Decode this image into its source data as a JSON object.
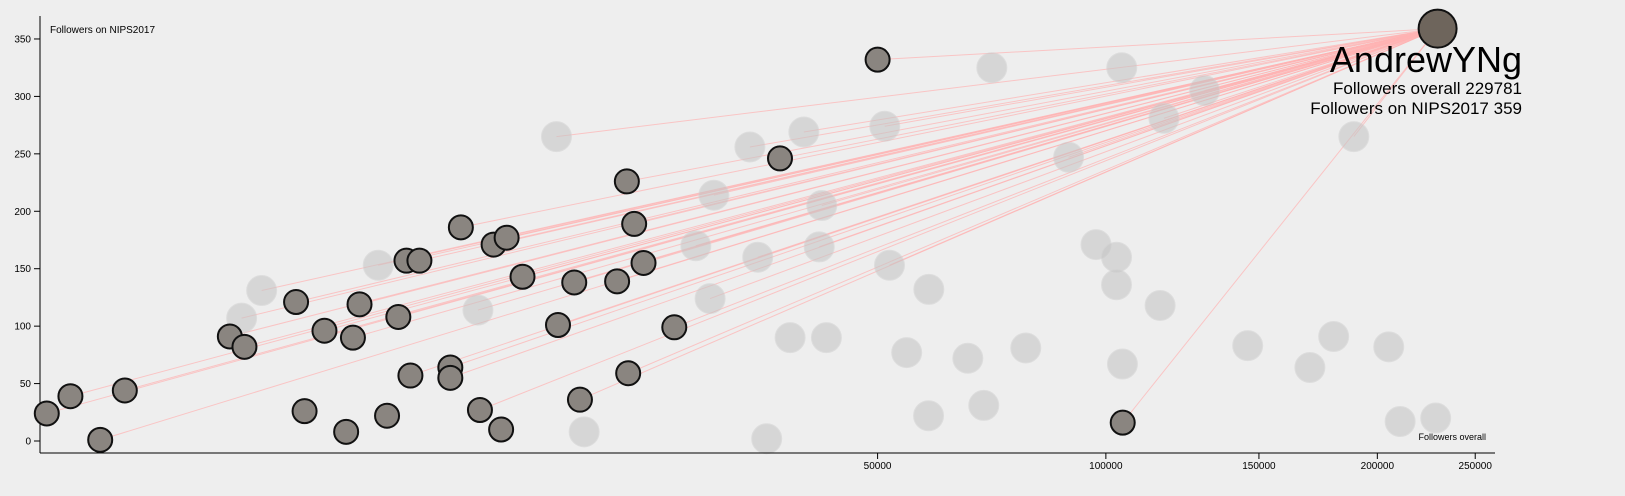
{
  "chart_data": {
    "type": "scatter",
    "xlabel": "Followers overall",
    "ylabel": "Followers on NIPS2017",
    "xscale": "pow",
    "xexponent": 0.25,
    "xlim": [
      437,
      260000
    ],
    "ylim": [
      -10,
      370
    ],
    "xticks": [
      50000,
      100000,
      150000,
      200000,
      250000
    ],
    "yticks": [
      0,
      50,
      100,
      150,
      200,
      250,
      300,
      350
    ],
    "highlight": {
      "label": "AndrewYNg",
      "x": 229781,
      "value": 359
    },
    "x": [
      50000,
      35680,
      19690,
      20300,
      9180,
      10800,
      11500,
      6900,
      7400,
      21100,
      12400,
      15700,
      18900,
      3600,
      5300,
      6600,
      14600,
      23900,
      2300,
      2550,
      4300,
      5100,
      8700,
      19800,
      7050,
      8700,
      16100,
      10100,
      3800,
      6200,
      4900,
      11200,
      104780,
      470,
      600,
      1000,
      800,
      71800,
      104500,
      130500,
      117200,
      189200,
      51200,
      38850,
      31960,
      14500,
      90000,
      27900,
      41370,
      26020,
      41000,
      32900,
      97280,
      103000,
      52000,
      59050,
      103000,
      116000,
      27500,
      37000,
      42040,
      79470,
      145800,
      180300,
      205400,
      170200,
      66720,
      104700,
      55000,
      59000,
      70060,
      210900,
      228800,
      34000,
      16400,
      2500,
      2870,
      5900,
      10000
    ],
    "values": [
      332,
      246,
      226,
      189,
      186,
      171,
      177,
      157,
      157,
      155,
      143,
      138,
      139,
      121,
      119,
      108,
      101,
      99,
      91,
      82,
      96,
      90,
      64,
      59,
      57,
      55,
      36,
      27,
      26,
      22,
      8,
      10,
      16,
      24,
      39,
      44,
      1,
      325,
      325,
      305,
      281,
      265,
      274,
      269,
      256,
      265,
      247,
      214,
      205,
      170,
      169,
      160,
      171,
      160,
      153,
      132,
      136,
      118,
      124,
      90,
      90,
      81,
      83,
      91,
      82,
      64,
      72,
      67,
      77,
      22,
      31,
      17,
      20,
      2,
      8,
      107,
      131,
      153,
      114
    ],
    "active": [
      true,
      true,
      true,
      true,
      true,
      true,
      true,
      true,
      true,
      true,
      true,
      true,
      true,
      true,
      true,
      true,
      true,
      true,
      true,
      true,
      true,
      true,
      true,
      true,
      true,
      true,
      true,
      true,
      true,
      true,
      true,
      true,
      true,
      true,
      true,
      true,
      true,
      false,
      false,
      false,
      false,
      false,
      false,
      false,
      false,
      false,
      false,
      false,
      false,
      false,
      false,
      false,
      false,
      false,
      false,
      false,
      false,
      false,
      false,
      false,
      false,
      false,
      false,
      false,
      false,
      false,
      false,
      false,
      false,
      false,
      false,
      false,
      false,
      false,
      false,
      false,
      false,
      false,
      false
    ],
    "linked": [
      true,
      true,
      true,
      true,
      true,
      true,
      true,
      true,
      true,
      true,
      true,
      true,
      true,
      true,
      true,
      true,
      true,
      true,
      true,
      true,
      true,
      true,
      true,
      true,
      true,
      true,
      true,
      true,
      false,
      false,
      false,
      false,
      true,
      true,
      true,
      true,
      true,
      false,
      false,
      true,
      true,
      true,
      true,
      true,
      true,
      true,
      true,
      true,
      true,
      true,
      true,
      true,
      false,
      false,
      true,
      false,
      false,
      false,
      true,
      false,
      false,
      false,
      false,
      false,
      false,
      false,
      false,
      false,
      false,
      false,
      false,
      false,
      false,
      false,
      false,
      true,
      true,
      true,
      true
    ]
  }
}
